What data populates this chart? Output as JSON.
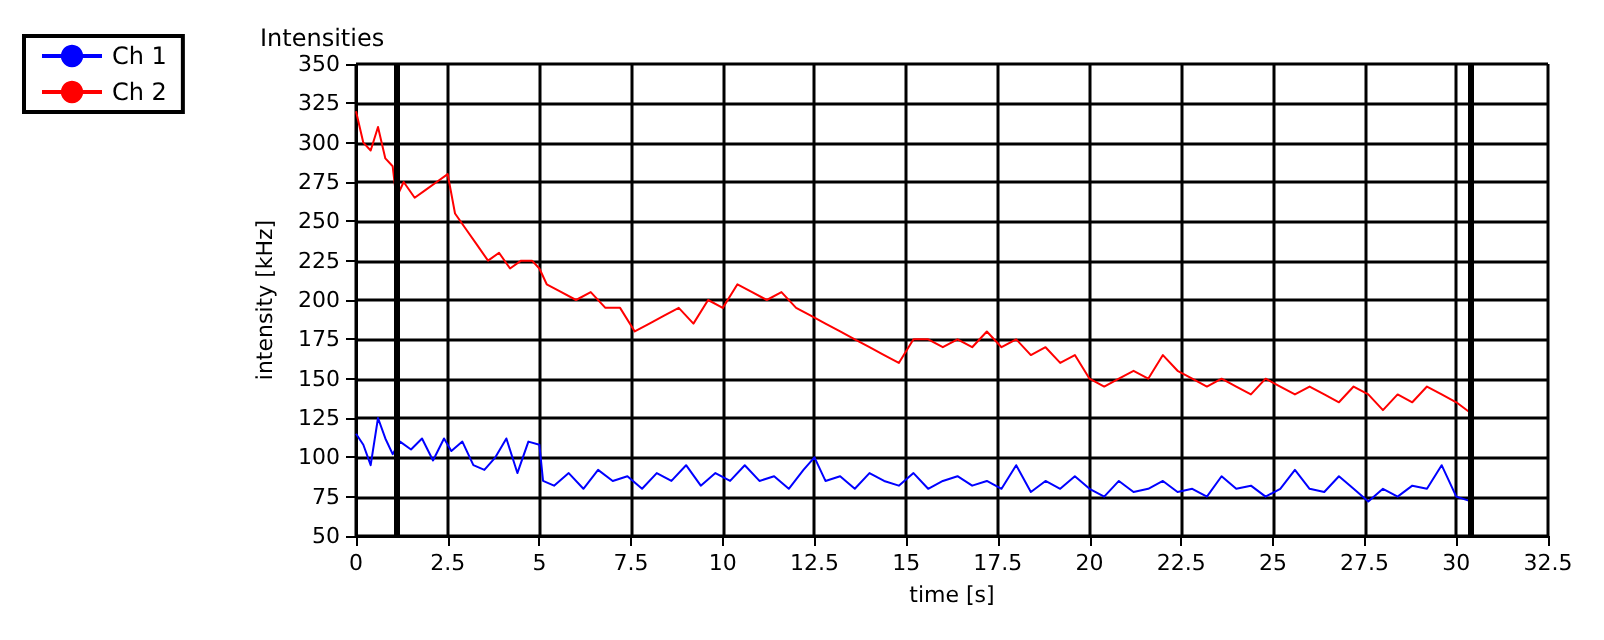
{
  "chart_data": {
    "type": "line",
    "title": "Intensities",
    "xlabel": "time [s]",
    "ylabel": "intensity [kHz]",
    "xlim": [
      0,
      32.5
    ],
    "xticks": [
      0,
      2.5,
      5,
      7.5,
      10,
      12.5,
      15,
      17.5,
      20,
      22.5,
      25,
      27.5,
      30,
      32.5
    ],
    "ylim": [
      50,
      350
    ],
    "yticks": [
      50,
      75,
      100,
      125,
      150,
      175,
      200,
      225,
      250,
      275,
      300,
      325,
      350
    ],
    "grid": true,
    "legend": "top left",
    "marker": "none",
    "line_style": "solid",
    "ref_lines": [
      {
        "axis": "x",
        "value": 1.1,
        "color": "#000000"
      },
      {
        "axis": "x",
        "value": 30.4,
        "color": "#000000"
      }
    ],
    "series": [
      {
        "name": "Ch 1",
        "color": "#0000ff",
        "x": [
          0,
          0.2,
          0.4,
          0.6,
          0.8,
          1,
          1.2,
          1.5,
          1.8,
          2.1,
          2.4,
          2.6,
          2.9,
          3.2,
          3.5,
          3.8,
          4.1,
          4.4,
          4.7,
          5,
          5.1,
          5.4,
          5.8,
          6.2,
          6.6,
          7,
          7.4,
          7.8,
          8.2,
          8.6,
          9,
          9.4,
          9.8,
          10.2,
          10.6,
          11,
          11.4,
          11.8,
          12.2,
          12.5,
          12.8,
          13.2,
          13.6,
          14,
          14.4,
          14.8,
          15.2,
          15.6,
          16,
          16.4,
          16.8,
          17.2,
          17.6,
          18,
          18.4,
          18.8,
          19.2,
          19.6,
          20,
          20.4,
          20.8,
          21.2,
          21.6,
          22,
          22.4,
          22.8,
          23.2,
          23.6,
          24,
          24.4,
          24.8,
          25.2,
          25.6,
          26,
          26.4,
          26.8,
          27.2,
          27.6,
          28,
          28.4,
          28.8,
          29.2,
          29.6,
          30,
          30.4
        ],
        "values": [
          115,
          108,
          95,
          125,
          112,
          102,
          110,
          105,
          112,
          98,
          112,
          104,
          110,
          95,
          92,
          100,
          112,
          90,
          110,
          108,
          85,
          82,
          90,
          80,
          92,
          85,
          88,
          80,
          90,
          85,
          95,
          82,
          90,
          85,
          95,
          85,
          88,
          80,
          92,
          100,
          85,
          88,
          80,
          90,
          85,
          82,
          90,
          80,
          85,
          88,
          82,
          85,
          80,
          95,
          78,
          85,
          80,
          88,
          80,
          75,
          85,
          78,
          80,
          85,
          78,
          80,
          75,
          88,
          80,
          82,
          75,
          80,
          92,
          80,
          78,
          88,
          80,
          72,
          80,
          75,
          82,
          80,
          95,
          75,
          72
        ]
      },
      {
        "name": "Ch 2",
        "color": "#ff0000",
        "x": [
          0,
          0.2,
          0.4,
          0.6,
          0.8,
          1,
          1.1,
          1.3,
          1.6,
          1.9,
          2.2,
          2.5,
          2.7,
          3,
          3.3,
          3.6,
          3.9,
          4.2,
          4.5,
          4.8,
          5,
          5.2,
          5.6,
          6,
          6.4,
          6.8,
          7.2,
          7.6,
          8,
          8.4,
          8.8,
          9.2,
          9.6,
          10,
          10.4,
          10.8,
          11.2,
          11.6,
          12,
          12.4,
          12.8,
          13.2,
          13.6,
          14,
          14.4,
          14.8,
          15.2,
          15.6,
          16,
          16.4,
          16.8,
          17.2,
          17.6,
          18,
          18.4,
          18.8,
          19.2,
          19.6,
          20,
          20.4,
          20.8,
          21.2,
          21.6,
          22,
          22.4,
          22.8,
          23.2,
          23.6,
          24,
          24.4,
          24.8,
          25.2,
          25.6,
          26,
          26.4,
          26.8,
          27.2,
          27.6,
          28,
          28.4,
          28.8,
          29.2,
          29.6,
          30,
          30.4
        ],
        "values": [
          320,
          300,
          295,
          310,
          290,
          285,
          265,
          275,
          265,
          270,
          275,
          280,
          255,
          245,
          235,
          225,
          230,
          220,
          225,
          225,
          220,
          210,
          205,
          200,
          205,
          195,
          195,
          180,
          185,
          190,
          195,
          185,
          200,
          195,
          210,
          205,
          200,
          205,
          195,
          190,
          185,
          180,
          175,
          170,
          165,
          160,
          175,
          175,
          170,
          175,
          170,
          180,
          170,
          175,
          165,
          170,
          160,
          165,
          150,
          145,
          150,
          155,
          150,
          165,
          155,
          150,
          145,
          150,
          145,
          140,
          150,
          145,
          140,
          145,
          140,
          135,
          145,
          140,
          130,
          140,
          135,
          145,
          140,
          135,
          128
        ]
      }
    ]
  }
}
